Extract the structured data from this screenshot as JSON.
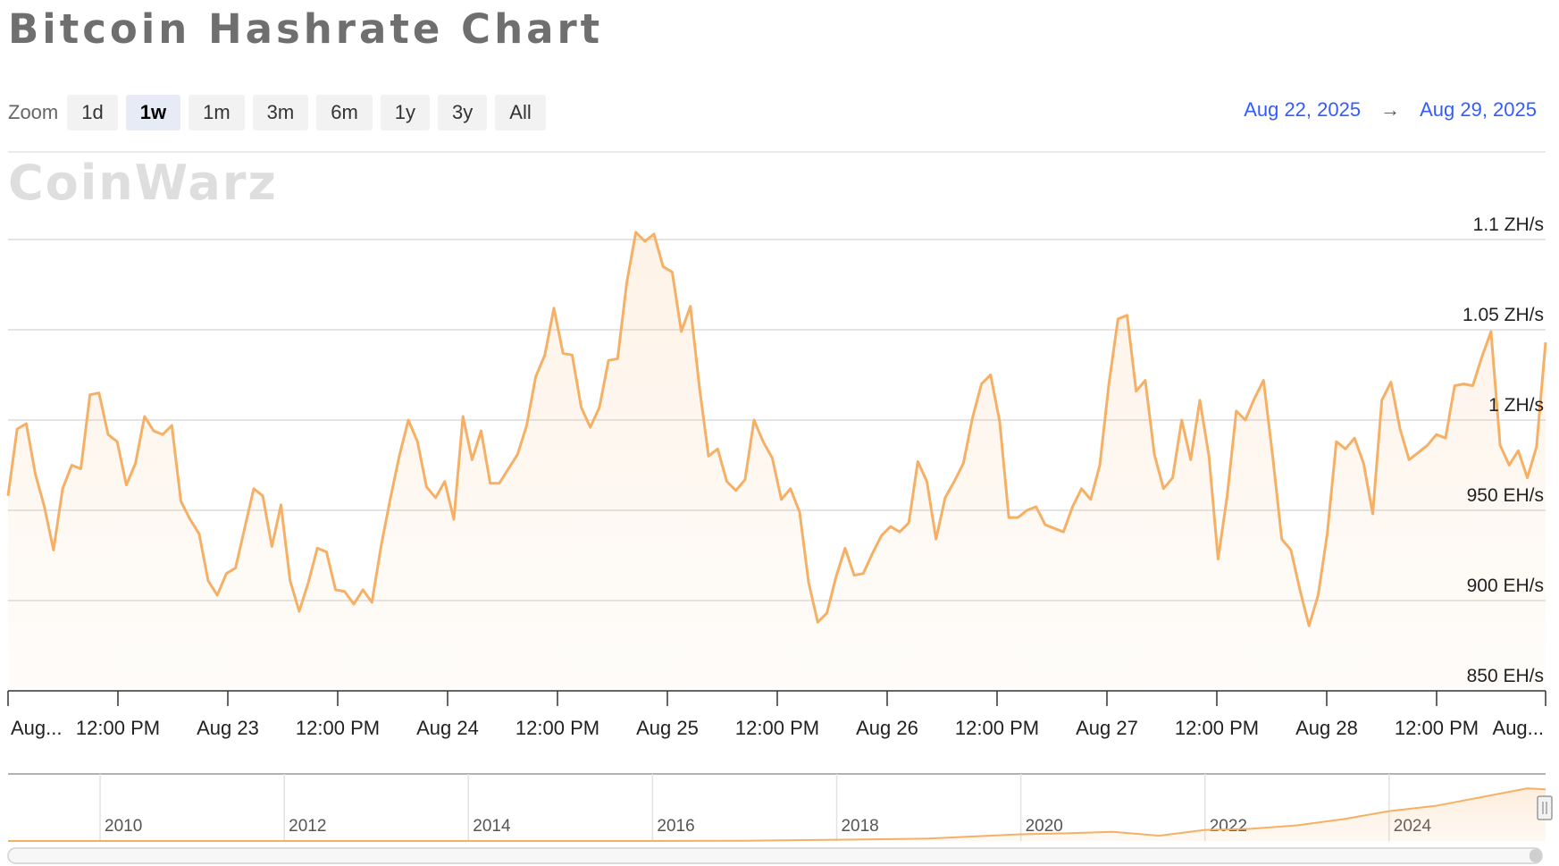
{
  "title": "Bitcoin Hashrate Chart",
  "zoom": {
    "label": "Zoom",
    "options": [
      "1d",
      "1w",
      "1m",
      "3m",
      "6m",
      "1y",
      "3y",
      "All"
    ],
    "selected": "1w"
  },
  "range": {
    "from": "Aug 22, 2025",
    "to": "Aug 29, 2025",
    "arrow_icon": "arrow-right-icon"
  },
  "watermark": "CoinWarz",
  "colors": {
    "series": "#f5b066",
    "range_date": "#335cff",
    "zoom_active": "#e6ebf5"
  },
  "chart_data": {
    "type": "area",
    "series": [
      {
        "unit": "EH/s",
        "x_start": "2025-08-22T00:00",
        "x_step_hours": 1,
        "values": [
          958,
          995,
          998,
          970,
          952,
          928,
          962,
          975,
          973,
          1014,
          1015,
          992,
          988,
          964,
          976,
          1002,
          994,
          992,
          997,
          955,
          945,
          937,
          911,
          903,
          915,
          918,
          940,
          962,
          958,
          930,
          953,
          911,
          894,
          910,
          929,
          927,
          906,
          905,
          898,
          906,
          899,
          930,
          956,
          980,
          1000,
          988,
          963,
          957,
          966,
          945,
          1002,
          978,
          994,
          965,
          965,
          973,
          981,
          997,
          1024,
          1036,
          1062,
          1037,
          1036,
          1007,
          996,
          1007,
          1033,
          1034,
          1076,
          1104,
          1099,
          1103,
          1085,
          1082,
          1049,
          1063,
          1018,
          980,
          984,
          966,
          961,
          967,
          1000,
          988,
          979,
          956,
          962,
          949,
          910,
          888,
          893,
          913,
          929,
          914,
          915,
          926,
          936,
          941,
          938,
          943,
          977,
          966,
          934,
          957,
          966,
          976,
          1001,
          1020,
          1025,
          999,
          946,
          946,
          950,
          952,
          942,
          940,
          938,
          952,
          962,
          956,
          975,
          1020,
          1056,
          1058,
          1016,
          1022,
          981,
          962,
          968,
          1000,
          978,
          1011,
          980,
          923,
          958,
          1005,
          1000,
          1012,
          1022,
          980,
          934,
          928,
          906,
          886,
          903,
          937,
          988,
          984,
          990,
          976,
          948,
          1011,
          1021,
          995,
          978,
          982,
          986,
          992,
          990,
          1019,
          1020,
          1019,
          1035,
          1049,
          986,
          975,
          983,
          968,
          985,
          1043
        ],
        "color": "#f5b066"
      }
    ],
    "y_ticks": [
      "850 EH/s",
      "900 EH/s",
      "950 EH/s",
      "1 ZH/s",
      "1.05 ZH/s",
      "1.1 ZH/s"
    ],
    "ylim": [
      850,
      1100
    ],
    "x_ticks": [
      "Aug...",
      "12:00 PM",
      "Aug 23",
      "12:00 PM",
      "Aug 24",
      "12:00 PM",
      "Aug 25",
      "12:00 PM",
      "Aug 26",
      "12:00 PM",
      "Aug 27",
      "12:00 PM",
      "Aug 28",
      "12:00 PM",
      "Aug..."
    ],
    "grid": "horizontal",
    "navigator": {
      "type": "area",
      "year_labels": [
        "2010",
        "2012",
        "2014",
        "2016",
        "2018",
        "2020",
        "2022",
        "2024"
      ],
      "xlim": [
        2009,
        2025.7
      ],
      "profile": [
        [
          2009,
          0
        ],
        [
          2016,
          0
        ],
        [
          2017,
          0.005
        ],
        [
          2018,
          0.02
        ],
        [
          2019,
          0.04
        ],
        [
          2020,
          0.1
        ],
        [
          2020.5,
          0.12
        ],
        [
          2021,
          0.15
        ],
        [
          2021.5,
          0.09
        ],
        [
          2022,
          0.19
        ],
        [
          2022.5,
          0.21
        ],
        [
          2023,
          0.27
        ],
        [
          2023.5,
          0.37
        ],
        [
          2024,
          0.5
        ],
        [
          2024.5,
          0.58
        ],
        [
          2025,
          0.72
        ],
        [
          2025.5,
          0.86
        ],
        [
          2025.7,
          0.84
        ]
      ]
    }
  }
}
